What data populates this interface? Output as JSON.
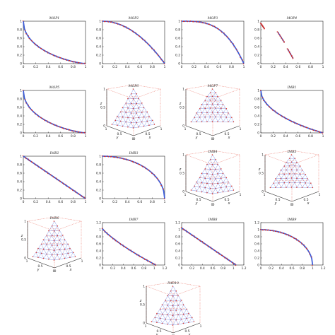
{
  "colors": {
    "true_front": "#3a5bd9",
    "obtained": "#e0301e",
    "axis": "#222222",
    "grid_box": "#e0301e"
  },
  "chart_data": [
    {
      "id": "mop1",
      "type": "line",
      "title": "MOP1",
      "xlim": [
        0,
        1
      ],
      "ylim": [
        0,
        1
      ],
      "xticks": [
        "0",
        "0.2",
        "0.4",
        "0.6",
        "0.8",
        "1"
      ],
      "yticks": [
        "0",
        "0.2",
        "0.4",
        "0.6",
        "0.8",
        "1"
      ],
      "curve": "mop1",
      "x": [
        0,
        0.03,
        0.1,
        0.2,
        0.35,
        0.5,
        0.7,
        0.85,
        1
      ],
      "y": [
        1,
        0.84,
        0.69,
        0.55,
        0.4,
        0.29,
        0.16,
        0.08,
        0
      ]
    },
    {
      "id": "mop2",
      "type": "line",
      "title": "MOP2",
      "xlim": [
        0,
        1
      ],
      "ylim": [
        0,
        1
      ],
      "xticks": [
        "0",
        "0.2",
        "0.4",
        "0.6",
        "0.8",
        "1"
      ],
      "yticks": [
        "0",
        "0.2",
        "0.4",
        "0.6",
        "0.8",
        "1"
      ],
      "curve": "concave2",
      "x": [
        0,
        0.2,
        0.4,
        0.6,
        0.8,
        0.9,
        1
      ],
      "y": [
        1,
        0.96,
        0.84,
        0.64,
        0.36,
        0.19,
        0
      ]
    },
    {
      "id": "mop3",
      "type": "line",
      "title": "MOP3",
      "xlim": [
        0,
        1
      ],
      "ylim": [
        0,
        1
      ],
      "xticks": [
        "0",
        "0.2",
        "0.4",
        "0.6",
        "0.8",
        "1"
      ],
      "yticks": [
        "0",
        "0.2",
        "0.4",
        "0.6",
        "0.8",
        "1"
      ],
      "curve": "concave4",
      "x": [
        0,
        0.2,
        0.4,
        0.6,
        0.8,
        0.9,
        1
      ],
      "y": [
        1,
        1,
        0.97,
        0.87,
        0.59,
        0.34,
        0
      ]
    },
    {
      "id": "mop4",
      "type": "scatter",
      "title": "MOP4",
      "xlim": [
        0,
        1
      ],
      "ylim": [
        0,
        1
      ],
      "xticks": [
        "0",
        "0.2",
        "0.4",
        "0.6",
        "0.8",
        "1"
      ],
      "yticks": [
        "0",
        "0.2",
        "0.4",
        "0.6",
        "0.8",
        "1"
      ],
      "segments": [
        {
          "x": [
            0,
            0.06
          ],
          "y": [
            0.95,
            0.82
          ]
        },
        {
          "x": [
            0.27,
            0.38
          ],
          "y": [
            0.75,
            0.5
          ]
        },
        {
          "x": [
            0.43,
            0.52
          ],
          "y": [
            0.35,
            0.12
          ]
        }
      ]
    },
    {
      "id": "mop5",
      "type": "line",
      "title": "MOP5",
      "xlim": [
        0,
        1
      ],
      "ylim": [
        0,
        1
      ],
      "xticks": [
        "0",
        "0.2",
        "0.4",
        "0.6",
        "0.8",
        "1"
      ],
      "yticks": [
        "0",
        "0.2",
        "0.4",
        "0.6",
        "0.8",
        "1"
      ],
      "curve": "mop1",
      "x": [
        0,
        0.1,
        0.3,
        0.5,
        0.7,
        1
      ],
      "y": [
        1,
        0.7,
        0.45,
        0.3,
        0.17,
        0
      ]
    },
    {
      "id": "mop6",
      "type": "scatter3d",
      "title": "MOP6",
      "shape": "pyramid",
      "zlabel": "z",
      "xlabel": "x",
      "ylabel": "y",
      "zticks": [
        "0",
        "0.5",
        "1"
      ],
      "xticks": [
        "0",
        "0.5",
        "1"
      ],
      "yticks": [
        "1",
        "0.5",
        "0"
      ]
    },
    {
      "id": "mop7",
      "type": "scatter3d",
      "title": "MOP7",
      "shape": "dome",
      "zlabel": "z",
      "xlabel": "x",
      "ylabel": "y",
      "zticks": [
        "0",
        "0.5",
        "1"
      ],
      "xticks": [
        "0",
        "0.5",
        "1"
      ],
      "yticks": [
        "1",
        "0.5",
        "0"
      ]
    },
    {
      "id": "imb1",
      "type": "line",
      "title": "IMB1",
      "xlim": [
        0,
        1
      ],
      "ylim": [
        0,
        1
      ],
      "xticks": [
        "0",
        "0.2",
        "0.4",
        "0.6",
        "0.8",
        "1"
      ],
      "yticks": [
        "0",
        "0.2",
        "0.4",
        "0.6",
        "0.8",
        "1"
      ],
      "curve": "convex",
      "x": [
        0,
        0.1,
        0.3,
        0.5,
        0.7,
        1
      ],
      "y": [
        1,
        0.68,
        0.45,
        0.29,
        0.16,
        0
      ]
    },
    {
      "id": "imb2",
      "type": "line",
      "title": "IMB2",
      "xlim": [
        0,
        1
      ],
      "ylim": [
        0,
        1
      ],
      "xticks": [
        "0",
        "0.2",
        "0.4",
        "0.6",
        "0.8",
        "1"
      ],
      "yticks": [
        "0",
        "0.2",
        "0.4",
        "0.6",
        "0.8",
        "1"
      ],
      "curve": "linear",
      "x": [
        0,
        0.5,
        1
      ],
      "y": [
        1,
        0.5,
        0
      ]
    },
    {
      "id": "imb3",
      "type": "line",
      "title": "IMB3",
      "xlim": [
        0,
        1
      ],
      "ylim": [
        0,
        1
      ],
      "xticks": [
        "0",
        "0.2",
        "0.4",
        "0.6",
        "0.8",
        "1"
      ],
      "yticks": [
        "0",
        "0.2",
        "0.4",
        "0.6",
        "0.8",
        "1"
      ],
      "curve": "circle",
      "x": [
        0,
        0.3,
        0.6,
        0.8,
        0.95,
        1
      ],
      "y": [
        1,
        0.95,
        0.8,
        0.6,
        0.31,
        0
      ]
    },
    {
      "id": "imb4",
      "type": "scatter3d",
      "title": "IMB4",
      "shape": "pyramid",
      "zlabel": "z",
      "xlabel": "x",
      "ylabel": "y",
      "zticks": [
        "0",
        "0.5",
        "1"
      ],
      "xticks": [
        "0",
        "0.5",
        "1"
      ],
      "yticks": [
        "1",
        "0.5",
        "0"
      ]
    },
    {
      "id": "imb5",
      "type": "scatter3d",
      "title": "IMB5",
      "shape": "dome",
      "zlabel": "z",
      "xlabel": "x",
      "ylabel": "y",
      "zticks": [
        "0",
        "0.5",
        "1"
      ],
      "xticks": [
        "0",
        "0.5",
        "1"
      ],
      "yticks": [
        "1",
        "0.5",
        "0"
      ]
    },
    {
      "id": "imb6",
      "type": "scatter3d",
      "title": "IMB6",
      "shape": "pyramid",
      "zlabel": "z",
      "xlabel": "x",
      "ylabel": "y",
      "zticks": [
        "0",
        "0.5",
        "1"
      ],
      "xticks": [
        "0",
        "0.5",
        "1"
      ],
      "yticks": [
        "1",
        "0.5",
        "0"
      ]
    },
    {
      "id": "imb7",
      "type": "line",
      "title": "IMB7",
      "xlim": [
        0,
        1.2
      ],
      "ylim": [
        0,
        1.2
      ],
      "xticks": [
        "0",
        "0.2",
        "0.4",
        "0.6",
        "0.8",
        "1",
        "1.2"
      ],
      "yticks": [
        "0",
        "0.2",
        "0.4",
        "0.6",
        "0.8",
        "1",
        "1.2"
      ],
      "curve": "convexlong",
      "x": [
        0,
        0.1,
        0.3,
        0.5,
        0.7,
        0.9,
        1.03
      ],
      "y": [
        1.03,
        0.8,
        0.6,
        0.45,
        0.3,
        0.13,
        0
      ]
    },
    {
      "id": "imb8",
      "type": "line",
      "title": "IMB8",
      "xlim": [
        0,
        1.2
      ],
      "ylim": [
        0,
        1.2
      ],
      "xticks": [
        "0",
        "0.2",
        "0.4",
        "0.6",
        "0.8",
        "1",
        "1.2"
      ],
      "yticks": [
        "0",
        "0.2",
        "0.4",
        "0.6",
        "0.8",
        "1",
        "1.2"
      ],
      "curve": "linear",
      "x": [
        0,
        0.5,
        1.05
      ],
      "y": [
        1.05,
        0.55,
        0
      ]
    },
    {
      "id": "imb9",
      "type": "line",
      "title": "IMB9",
      "xlim": [
        0,
        1.2
      ],
      "ylim": [
        0,
        1.2
      ],
      "xticks": [
        "0",
        "0.2",
        "0.4",
        "0.6",
        "0.8",
        "1",
        "1.2"
      ],
      "yticks": [
        "0",
        "0.2",
        "0.4",
        "0.6",
        "0.8",
        "1",
        "1.2"
      ],
      "curve": "circle",
      "x": [
        0,
        0.4,
        0.7,
        0.9,
        1.0
      ],
      "y": [
        1.0,
        0.92,
        0.71,
        0.44,
        0
      ]
    },
    {
      "id": "imb10",
      "type": "scatter3d",
      "title": "IMB10",
      "shape": "pyramid",
      "zlabel": "z",
      "xlabel": "x",
      "ylabel": "y",
      "zticks": [
        "0",
        "0.5",
        "1"
      ],
      "xticks": [
        "0",
        "0.5",
        "1"
      ],
      "yticks": [
        "1",
        "0.5",
        "0"
      ]
    }
  ]
}
